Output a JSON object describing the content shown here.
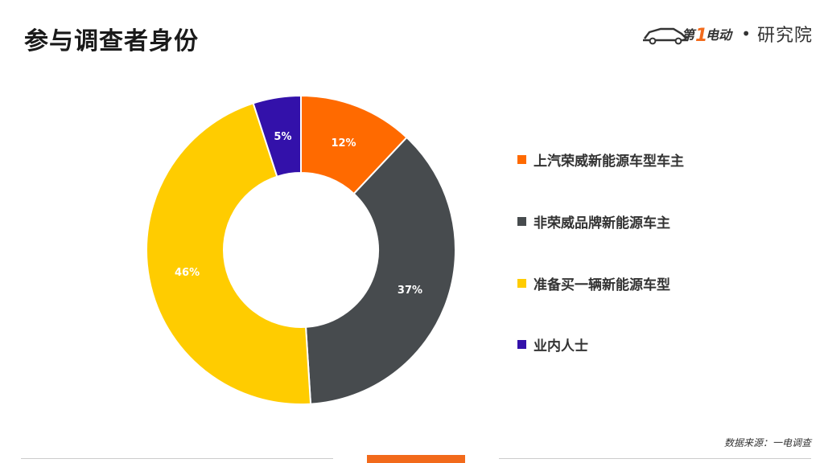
{
  "page": {
    "title": "参与调查者身份",
    "logo": {
      "brand_icon": "car-logo-icon",
      "mark_text": "第1电动",
      "name": "研究院"
    },
    "source": "数据来源：一电调查",
    "accent_color": "#f26a1b"
  },
  "chart_data": {
    "type": "pie",
    "donut": true,
    "title": "",
    "legend_position": "right",
    "slices": [
      {
        "label": "上汽荣威新能源车型车主",
        "value": 12,
        "display": "12%",
        "color": "#ff6a00"
      },
      {
        "label": "非荣威品牌新能源车主",
        "value": 37,
        "display": "37%",
        "color": "#474b4e"
      },
      {
        "label": "准备买一辆新能源车型",
        "value": 46,
        "display": "46%",
        "color": "#ffcc00"
      },
      {
        "label": "业内人士",
        "value": 5,
        "display": "5%",
        "color": "#3311aa"
      }
    ]
  }
}
